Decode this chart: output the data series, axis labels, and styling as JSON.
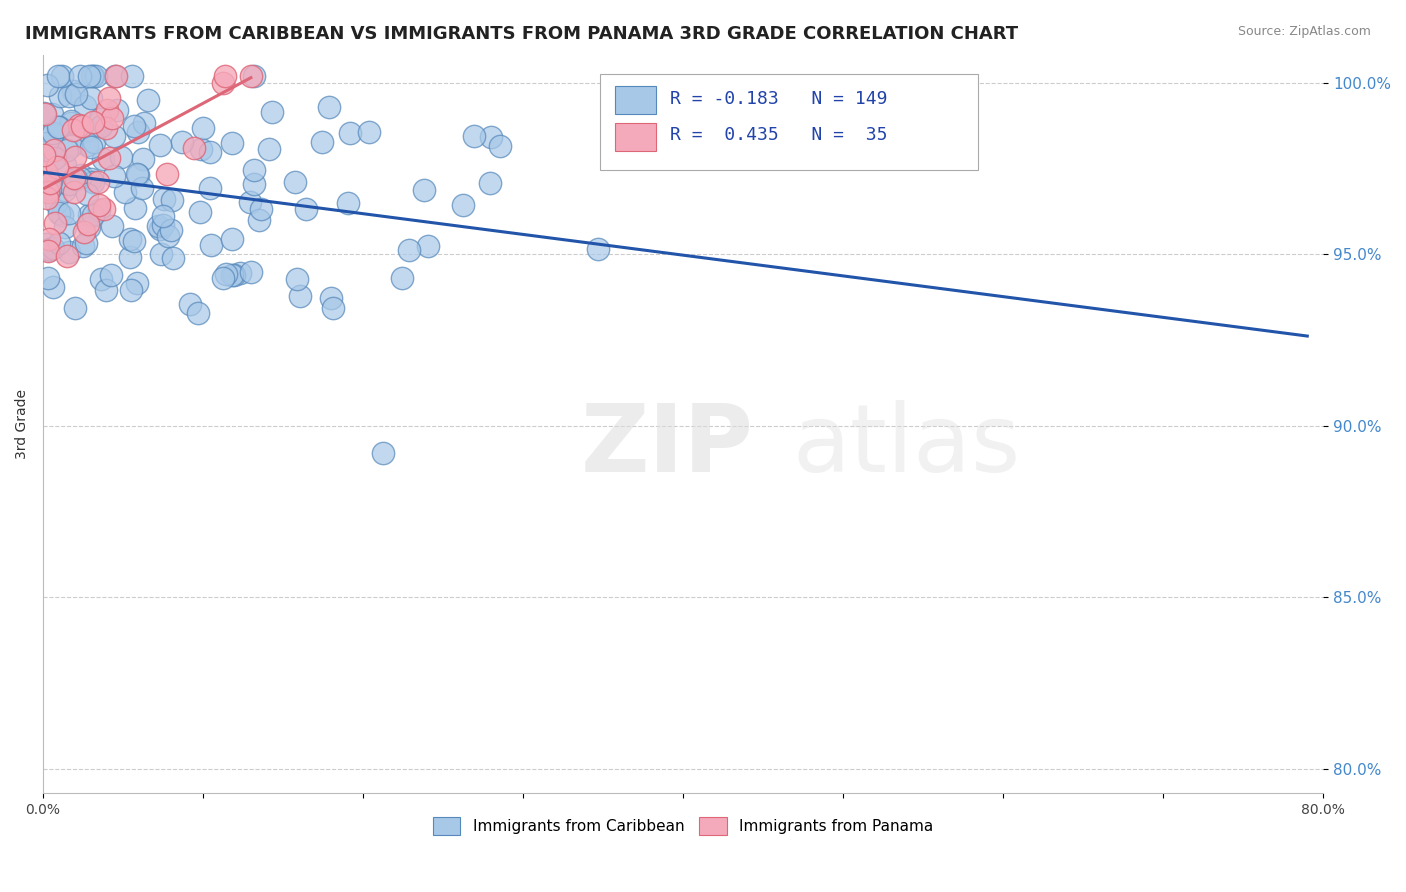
{
  "title": "IMMIGRANTS FROM CARIBBEAN VS IMMIGRANTS FROM PANAMA 3RD GRADE CORRELATION CHART",
  "source": "Source: ZipAtlas.com",
  "ylabel": "3rd Grade",
  "xlim": [
    0.0,
    0.8
  ],
  "ylim": [
    0.793,
    1.008
  ],
  "xticks": [
    0.0,
    0.1,
    0.2,
    0.3,
    0.4,
    0.5,
    0.6,
    0.7,
    0.8
  ],
  "xticklabels": [
    "0.0%",
    "",
    "",
    "",
    "",
    "",
    "",
    "",
    "80.0%"
  ],
  "yticks": [
    0.8,
    0.85,
    0.9,
    0.95,
    1.0
  ],
  "yticklabels": [
    "80.0%",
    "85.0%",
    "90.0%",
    "95.0%",
    "100.0%"
  ],
  "blue_color": "#a8c8e8",
  "blue_edge": "#5588bb",
  "blue_line": "#2255aa",
  "pink_color": "#f5aabb",
  "pink_edge": "#dd6677",
  "pink_line": "#dd6677",
  "r1": -0.183,
  "n1": 149,
  "r2": 0.435,
  "n2": 35,
  "watermark_zip": "ZIP",
  "watermark_atlas": "atlas",
  "title_fontsize": 13,
  "axis_tick_fontsize": 10,
  "legend_fontsize": 13,
  "source_fontsize": 9
}
